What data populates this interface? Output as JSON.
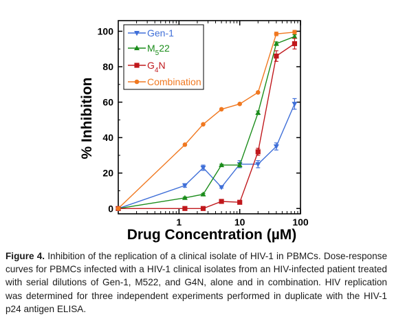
{
  "chart_data": {
    "type": "line",
    "xlabel": "Drug Concentration (µM)",
    "ylabel": "% Inhibition",
    "xscale": "log",
    "xlim": [
      0.1,
      100
    ],
    "ylim": [
      -3,
      106
    ],
    "x_ticks": [
      {
        "value": 1,
        "label": "1"
      },
      {
        "value": 10,
        "label": "10"
      },
      {
        "value": 100,
        "label": "100"
      }
    ],
    "y_ticks": [
      0,
      20,
      40,
      60,
      80,
      100
    ],
    "grid": false,
    "legend": "top-right inside",
    "series": [
      {
        "name": "Gen-1",
        "color": "#3f6fd8",
        "marker": "triangle-down",
        "x": [
          0.1,
          1.25,
          2.5,
          5,
          10,
          20,
          40,
          80
        ],
        "y": [
          0,
          13,
          23,
          12,
          25,
          25,
          35,
          59
        ],
        "err": [
          0,
          1,
          1.5,
          0.5,
          2,
          2,
          2,
          3
        ]
      },
      {
        "name": "M522",
        "name_main": "M",
        "name_sub": "5",
        "name_rest": "22",
        "color": "#1a8c1a",
        "marker": "triangle-up",
        "x": [
          0.1,
          1.25,
          2.5,
          5,
          10,
          20,
          40,
          80
        ],
        "y": [
          0,
          6,
          8,
          24.5,
          24.5,
          54,
          93,
          97
        ],
        "err": [
          0,
          0.5,
          0.5,
          0.5,
          1,
          1,
          1,
          1
        ]
      },
      {
        "name": "G4N",
        "name_main": "G",
        "name_sub": "4",
        "name_rest": "N",
        "color": "#c0181c",
        "marker": "square",
        "x": [
          0.1,
          1.25,
          2.5,
          5,
          10,
          20,
          40,
          80
        ],
        "y": [
          0,
          0,
          0,
          4,
          3.5,
          32,
          86,
          93
        ],
        "err": [
          0,
          0,
          0,
          0.5,
          0.5,
          2,
          3,
          3
        ]
      },
      {
        "name": "Combination",
        "color": "#f07820",
        "marker": "circle",
        "x": [
          0.1,
          1.25,
          2.5,
          5,
          10,
          20,
          40,
          80
        ],
        "y": [
          0,
          36,
          47.5,
          56,
          59,
          65.5,
          98.5,
          99.5
        ],
        "err": [
          0,
          0,
          0,
          0,
          0,
          0,
          1,
          1
        ]
      }
    ]
  },
  "caption": {
    "label": "Figure 4.",
    "text": " Inhibition of the replication of a clinical isolate of HIV-1 in PBMCs. Dose-response curves for PBMCs infected with a HIV-1 clinical isolates from an HIV-infected patient treated with serial dilutions of Gen-1, M522, and G4N, alone and in combination. HIV replication was determined for three independent experiments performed in duplicate with the HIV-1 p24 antigen ELISA."
  }
}
